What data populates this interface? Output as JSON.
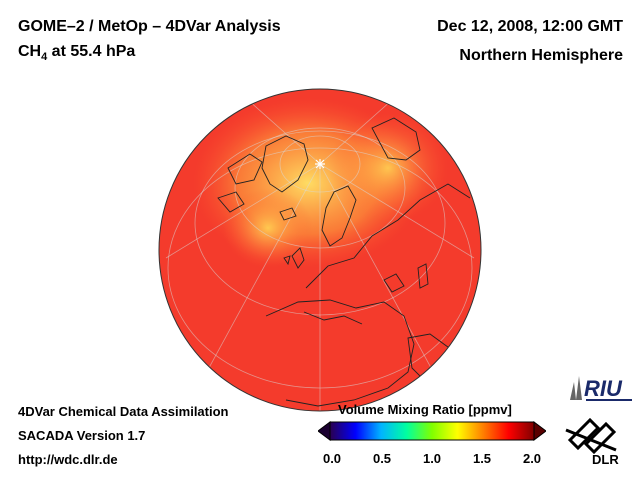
{
  "header": {
    "title_line1": "GOME–2 / MetOp – 4DVar Analysis",
    "species_main": "CH",
    "species_sub": "4",
    "species_level": " at 55.4 hPa",
    "datetime": "Dec 12, 2008, 12:00 GMT",
    "region": "Northern Hemisphere"
  },
  "footer": {
    "line1": "4DVar Chemical Data Assimilation",
    "line2": "SACADA Version 1.7",
    "line3": "http://wdc.dlr.de"
  },
  "colorbar": {
    "title": "Volume Mixing Ratio [ppmv]",
    "ticks": [
      "0.0",
      "0.5",
      "1.0",
      "1.5",
      "2.0"
    ],
    "min": 0.0,
    "max": 2.0,
    "colors": [
      "#2a0050",
      "#0000ff",
      "#00b4ff",
      "#00ffa0",
      "#80ff00",
      "#ffff00",
      "#ff8000",
      "#ff0000",
      "#800000"
    ]
  },
  "logos": {
    "riu": "RIU",
    "dlr": "DLR"
  },
  "map_colors": {
    "background_field": "#f43b2c",
    "high_field": "#ffd24a",
    "outline": "#333333"
  }
}
